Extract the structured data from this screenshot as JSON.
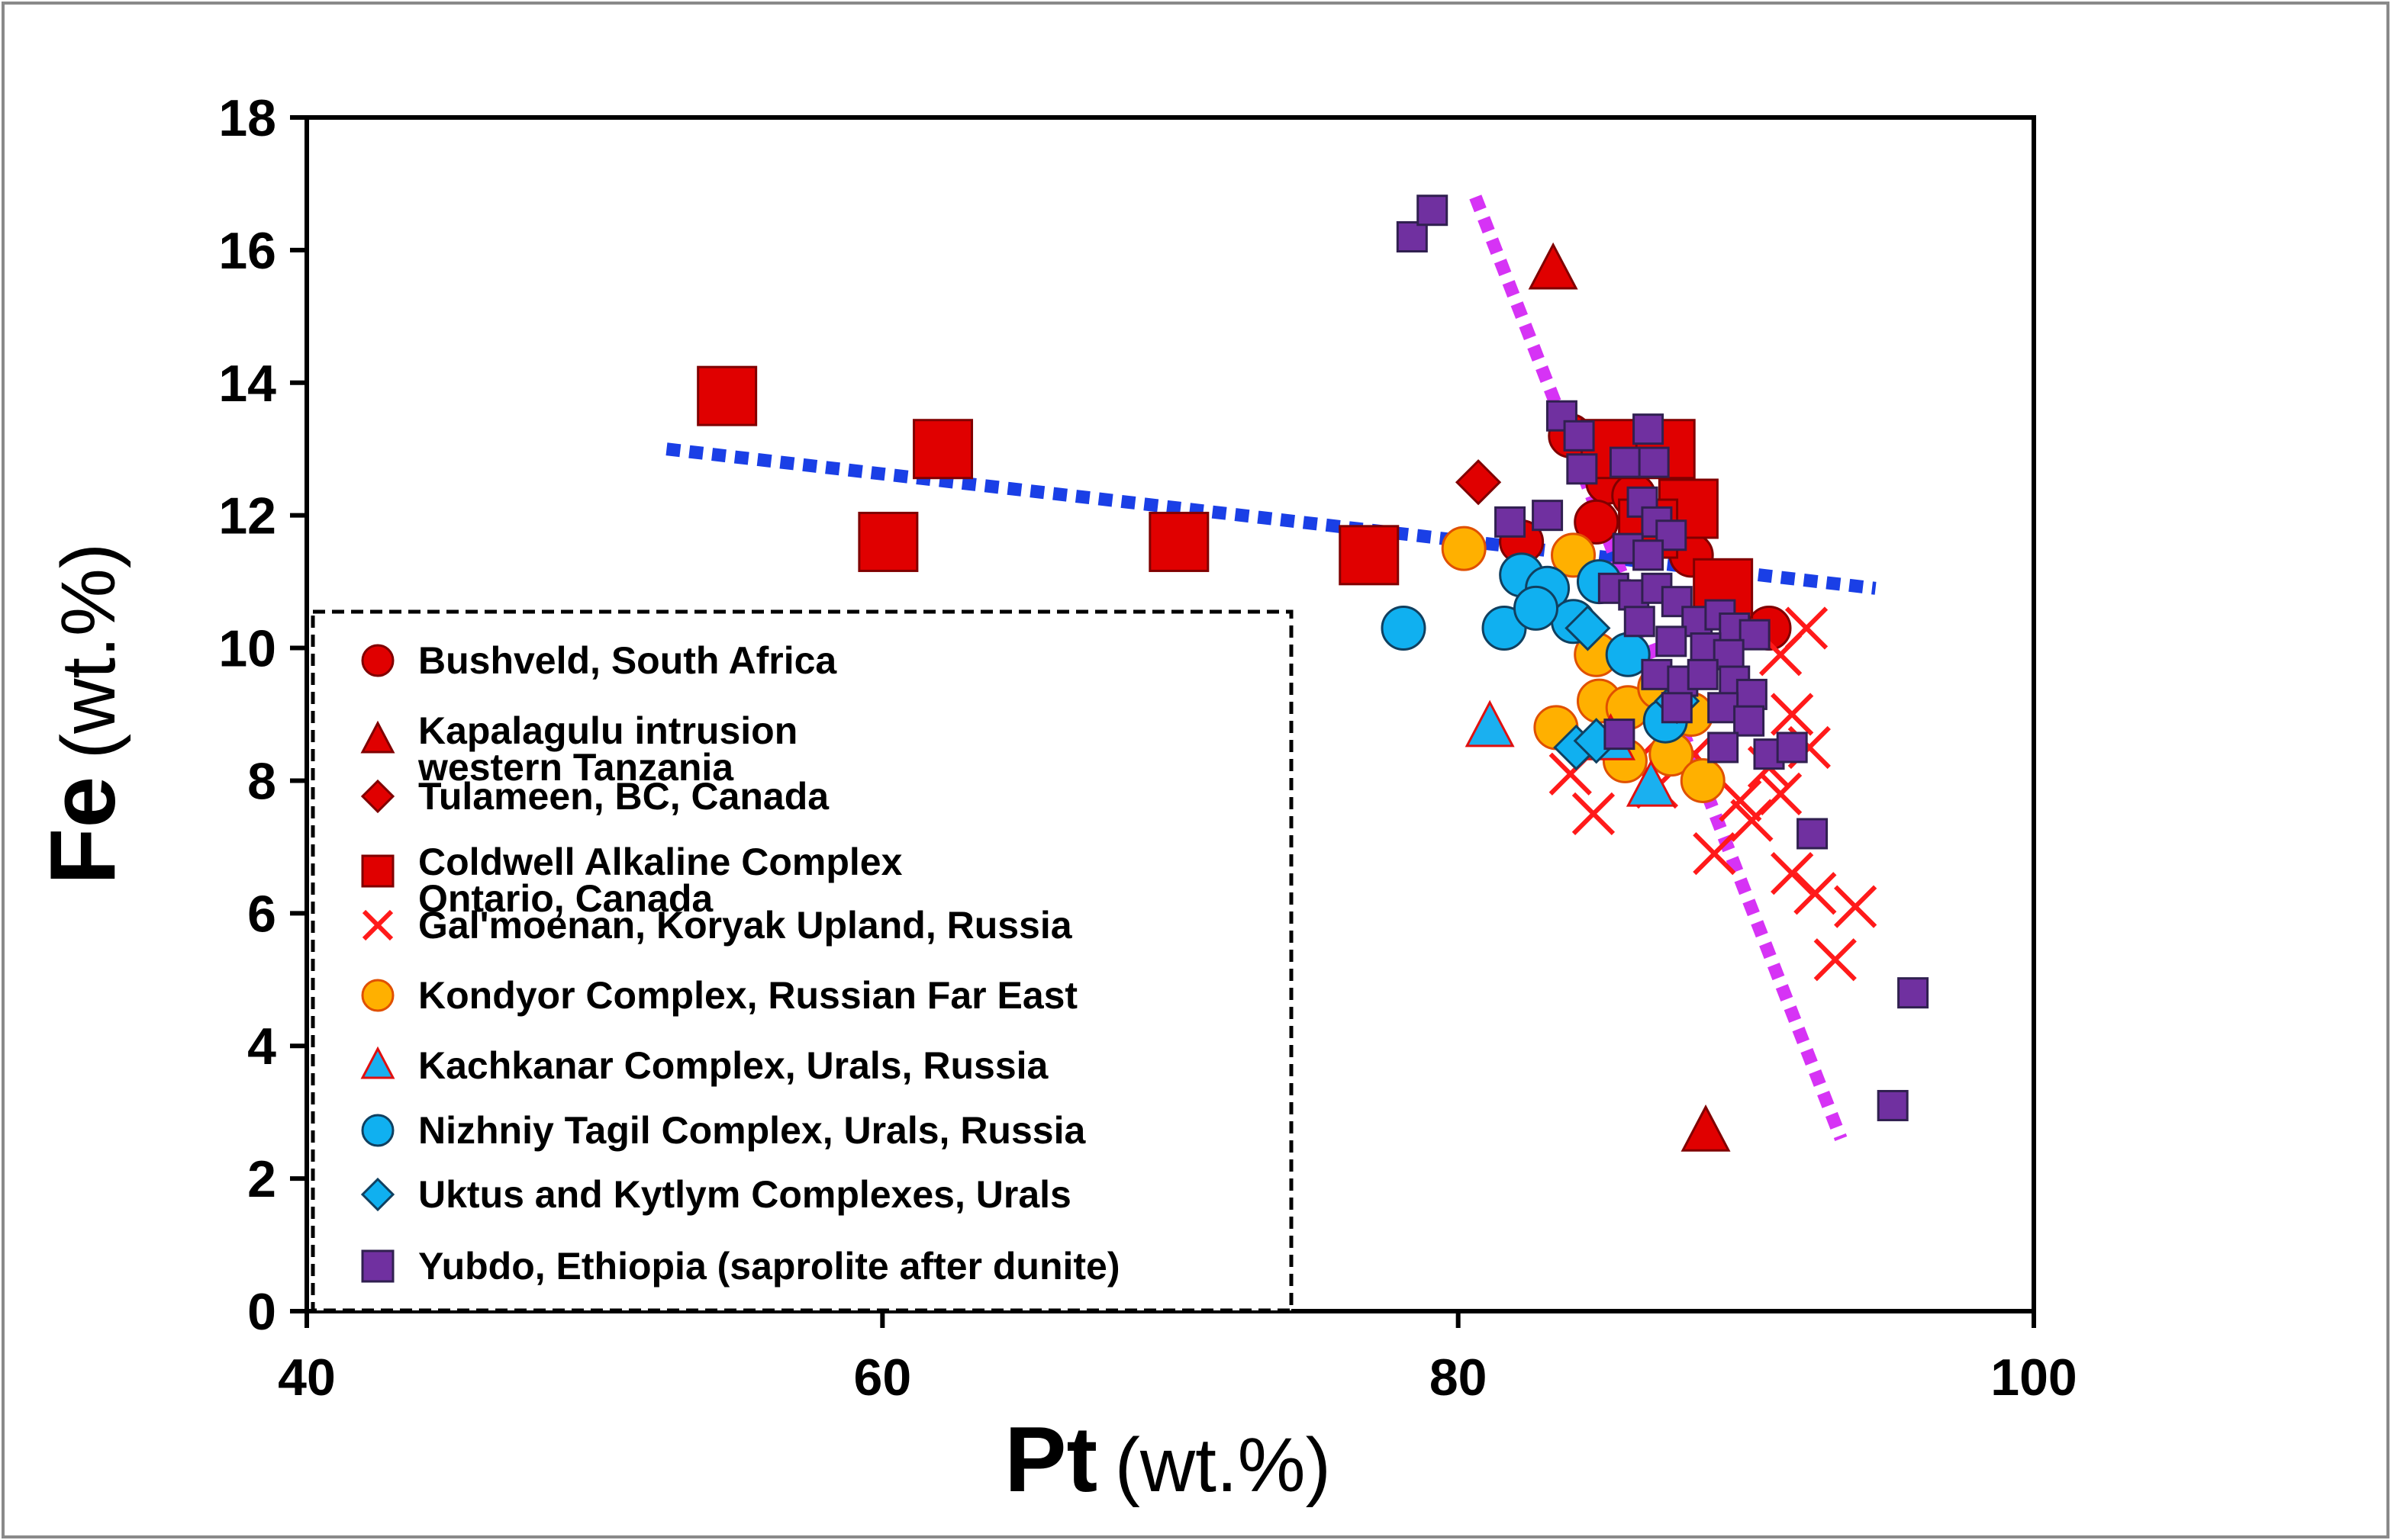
{
  "chart_data": {
    "type": "scatter",
    "xlabel": {
      "element": "Pt",
      "unit": "(wt.%)"
    },
    "ylabel": {
      "element": "Fe",
      "unit": "(wt.%)"
    },
    "xlim": [
      40,
      100
    ],
    "ylim": [
      0,
      18
    ],
    "xticks": [
      "40",
      "60",
      "80",
      "100"
    ],
    "yticks": [
      "0",
      "2",
      "4",
      "6",
      "8",
      "10",
      "12",
      "14",
      "16",
      "18"
    ],
    "grid": false,
    "legend_position": "bottom-left",
    "series": [
      {
        "name": "Bushveld, South Africa",
        "marker": "circle",
        "color": "#e00000",
        "edge": "#800000",
        "points": [
          [
            83.9,
            13.2
          ],
          [
            85.2,
            12.5
          ],
          [
            86.1,
            12.3
          ],
          [
            84.8,
            11.9
          ],
          [
            82.2,
            11.6
          ],
          [
            88.1,
            11.4
          ],
          [
            89.2,
            11.0
          ],
          [
            90.8,
            10.3
          ]
        ]
      },
      {
        "name": "Kapalagulu intrusion\nwestern Tanzania",
        "legend_lines": [
          "Kapalagulu intrusion",
          "western Tanzania"
        ],
        "marker": "triangle",
        "color": "#e00000",
        "edge": "#800000",
        "points": [
          [
            83.3,
            15.7
          ],
          [
            88.6,
            2.7
          ]
        ]
      },
      {
        "name": "Tulameen, BC, Canada",
        "marker": "diamond",
        "color": "#e00000",
        "edge": "#800000",
        "points": [
          [
            80.7,
            12.5
          ]
        ]
      },
      {
        "name": "Coldwell Alkaline Complex\nOntario, Canada",
        "legend_lines": [
          "Coldwell Alkaline Complex",
          "Ontario, Canada"
        ],
        "marker": "square",
        "color": "#e00000",
        "edge": "#800000",
        "points": [
          [
            54.6,
            13.8
          ],
          [
            62.1,
            13.0
          ],
          [
            60.2,
            11.6
          ],
          [
            70.3,
            11.6
          ],
          [
            76.9,
            11.4
          ],
          [
            85.3,
            13.0
          ],
          [
            87.2,
            13.0
          ],
          [
            88.0,
            12.1
          ],
          [
            86.6,
            11.8
          ],
          [
            89.2,
            10.9
          ]
        ]
      },
      {
        "name": "Gal'moenan, Koryak Upland, Russia",
        "marker": "x",
        "color": "#ff1a1a",
        "points": [
          [
            83.9,
            8.1
          ],
          [
            84.7,
            7.5
          ],
          [
            86.2,
            8.3
          ],
          [
            86.9,
            7.9
          ],
          [
            88.2,
            8.4
          ],
          [
            88.9,
            6.9
          ],
          [
            89.8,
            7.7
          ],
          [
            90.8,
            8.2
          ],
          [
            91.2,
            7.8
          ],
          [
            91.6,
            9.0
          ],
          [
            91.2,
            9.9
          ],
          [
            92.1,
            10.3
          ],
          [
            92.2,
            8.5
          ],
          [
            91.6,
            6.6
          ],
          [
            92.4,
            6.3
          ],
          [
            93.1,
            5.3
          ],
          [
            93.8,
            6.1
          ],
          [
            90.2,
            7.4
          ]
        ]
      },
      {
        "name": "Kondyor Complex, Russian Far East",
        "marker": "circle",
        "color": "#ffb000",
        "edge": "#e05000",
        "points": [
          [
            80.2,
            11.5
          ],
          [
            84.0,
            11.4
          ],
          [
            84.8,
            9.9
          ],
          [
            84.9,
            9.2
          ],
          [
            85.9,
            9.1
          ],
          [
            83.4,
            8.8
          ],
          [
            85.8,
            8.3
          ],
          [
            87.4,
            8.4
          ],
          [
            88.5,
            8.0
          ],
          [
            87.0,
            9.4
          ],
          [
            88.1,
            9.0
          ]
        ]
      },
      {
        "name": "Kachkanar Complex, Urals, Russia",
        "marker": "triangle",
        "color": "#1ab0f0",
        "edge": "#e01010",
        "points": [
          [
            81.1,
            8.8
          ],
          [
            86.7,
            7.9
          ],
          [
            85.3,
            8.6
          ]
        ]
      },
      {
        "name": "Nizhniy Tagil Complex, Urals, Russia",
        "marker": "circle",
        "color": "#10b0f0",
        "edge": "#104060",
        "points": [
          [
            78.1,
            10.3
          ],
          [
            81.6,
            10.3
          ],
          [
            82.2,
            11.1
          ],
          [
            83.1,
            10.9
          ],
          [
            84.0,
            10.4
          ],
          [
            84.9,
            11.0
          ],
          [
            85.9,
            9.9
          ],
          [
            87.2,
            8.9
          ],
          [
            82.7,
            10.6
          ]
        ]
      },
      {
        "name": "Uktus and Kytlym Complexes, Urals",
        "marker": "diamond",
        "color": "#10b0f0",
        "edge": "#104060",
        "points": [
          [
            84.5,
            10.3
          ],
          [
            84.1,
            8.5
          ],
          [
            84.8,
            8.6
          ],
          [
            87.6,
            9.2
          ]
        ]
      },
      {
        "name": "Yubdo, Ethiopia (saprolite after dunite)",
        "marker": "square",
        "color": "#7030a0",
        "edge": "#302050",
        "points": [
          [
            78.4,
            16.2
          ],
          [
            79.1,
            16.6
          ],
          [
            83.6,
            13.5
          ],
          [
            84.2,
            13.2
          ],
          [
            86.6,
            13.3
          ],
          [
            85.8,
            12.8
          ],
          [
            86.8,
            12.8
          ],
          [
            81.8,
            11.9
          ],
          [
            83.1,
            12.0
          ],
          [
            84.3,
            12.7
          ],
          [
            86.4,
            12.2
          ],
          [
            86.9,
            11.9
          ],
          [
            87.4,
            11.7
          ],
          [
            85.9,
            11.5
          ],
          [
            86.6,
            11.4
          ],
          [
            85.4,
            10.9
          ],
          [
            86.1,
            10.8
          ],
          [
            86.9,
            10.9
          ],
          [
            87.6,
            10.7
          ],
          [
            88.3,
            10.4
          ],
          [
            89.1,
            10.5
          ],
          [
            89.6,
            10.3
          ],
          [
            90.3,
            10.2
          ],
          [
            86.3,
            10.4
          ],
          [
            87.4,
            10.1
          ],
          [
            88.6,
            10.0
          ],
          [
            89.4,
            9.9
          ],
          [
            86.9,
            9.6
          ],
          [
            87.8,
            9.5
          ],
          [
            88.5,
            9.6
          ],
          [
            89.6,
            9.5
          ],
          [
            90.2,
            9.3
          ],
          [
            87.6,
            9.1
          ],
          [
            89.2,
            9.1
          ],
          [
            90.1,
            8.9
          ],
          [
            85.6,
            8.7
          ],
          [
            89.2,
            8.5
          ],
          [
            90.8,
            8.4
          ],
          [
            91.6,
            8.5
          ],
          [
            92.3,
            7.2
          ],
          [
            95.8,
            4.8
          ],
          [
            95.1,
            3.1
          ]
        ]
      }
    ],
    "trend_lines": [
      {
        "name": "blue trend",
        "color": "#1a3fe6",
        "from": [
          52.5,
          13.0
        ],
        "to": [
          94.5,
          10.9
        ]
      },
      {
        "name": "magenta trend",
        "color": "#d633f5",
        "from": [
          80.6,
          16.8
        ],
        "to": [
          93.3,
          2.6
        ]
      }
    ]
  }
}
